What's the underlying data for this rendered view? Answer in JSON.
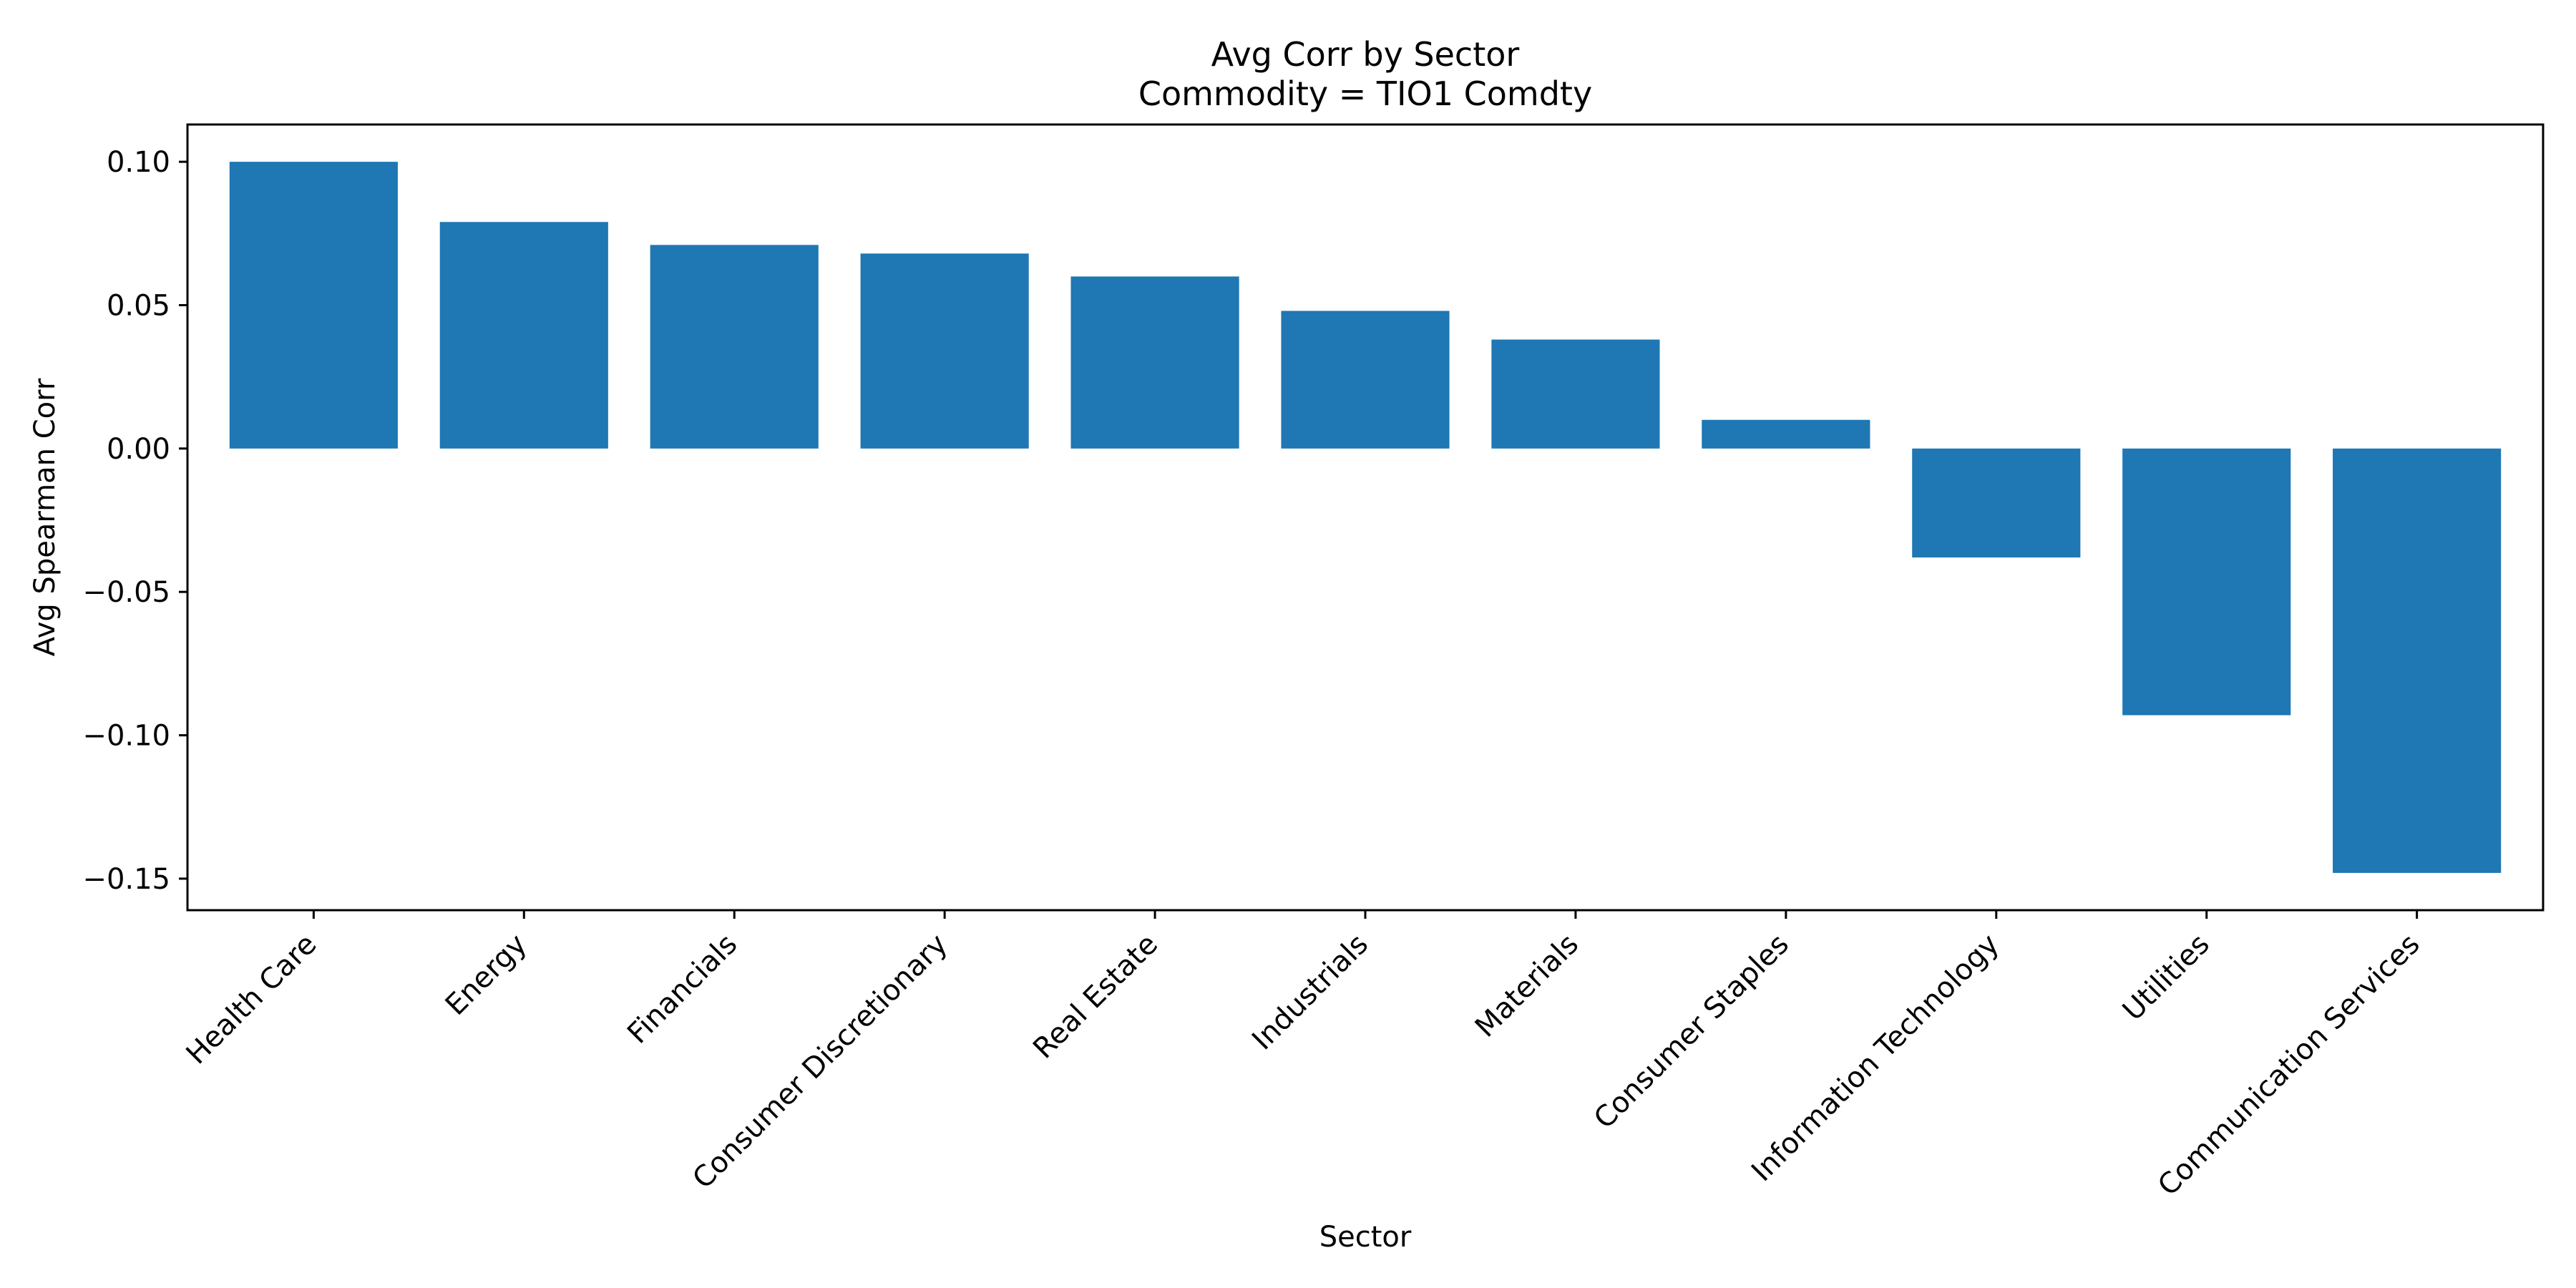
{
  "chart_data": {
    "type": "bar",
    "title": "Avg Corr by Sector",
    "subtitle": "Commodity = TIO1 Comdty",
    "xlabel": "Sector",
    "ylabel": "Avg Spearman Corr",
    "categories": [
      "Health Care",
      "Energy",
      "Financials",
      "Consumer Discretionary",
      "Real Estate",
      "Industrials",
      "Materials",
      "Consumer Staples",
      "Information Technology",
      "Utilities",
      "Communication Services"
    ],
    "values": [
      0.1,
      0.079,
      0.071,
      0.068,
      0.06,
      0.048,
      0.038,
      0.01,
      -0.038,
      -0.093,
      -0.148
    ],
    "ylim": [
      -0.161,
      0.113
    ],
    "yticks": [
      0.1,
      0.05,
      0.0,
      -0.05,
      -0.1,
      -0.15
    ],
    "ytick_labels": [
      "0.10",
      "0.05",
      "0.00",
      "−0.05",
      "−0.10",
      "−0.15"
    ],
    "grid": false,
    "legend": "none",
    "bar_color": "#1f77b4"
  }
}
